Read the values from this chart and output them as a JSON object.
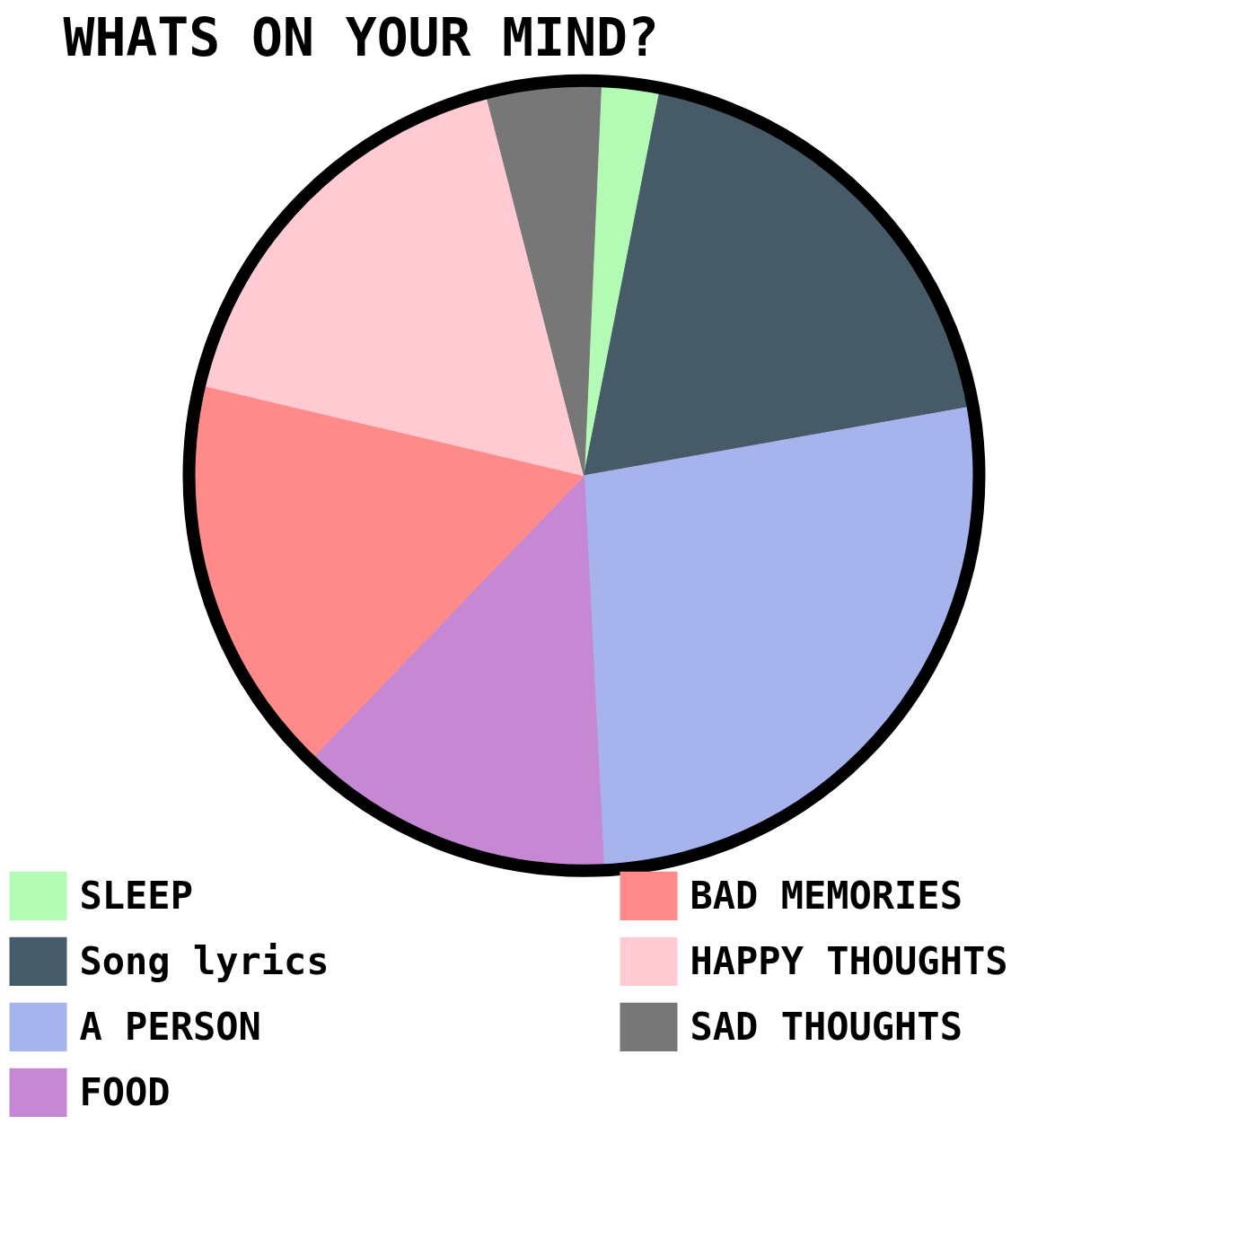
{
  "chart_data": {
    "type": "pie",
    "title": "WHATS ON YOUR MIND?",
    "categories": [
      "SLEEP",
      "Song lyrics",
      "A PERSON",
      "FOOD",
      "BAD MEMORIES",
      "HAPPY THOUGHTS",
      "SAD THOUGHTS"
    ],
    "values": [
      2.4,
      19.1,
      27.0,
      13.0,
      16.5,
      17.3,
      4.7
    ],
    "colors": [
      "#b3fab5",
      "#475a68",
      "#a7b3ed",
      "#c688d2",
      "#ff8a8a",
      "#ffcad2",
      "#777777"
    ],
    "legend": "bottom"
  }
}
